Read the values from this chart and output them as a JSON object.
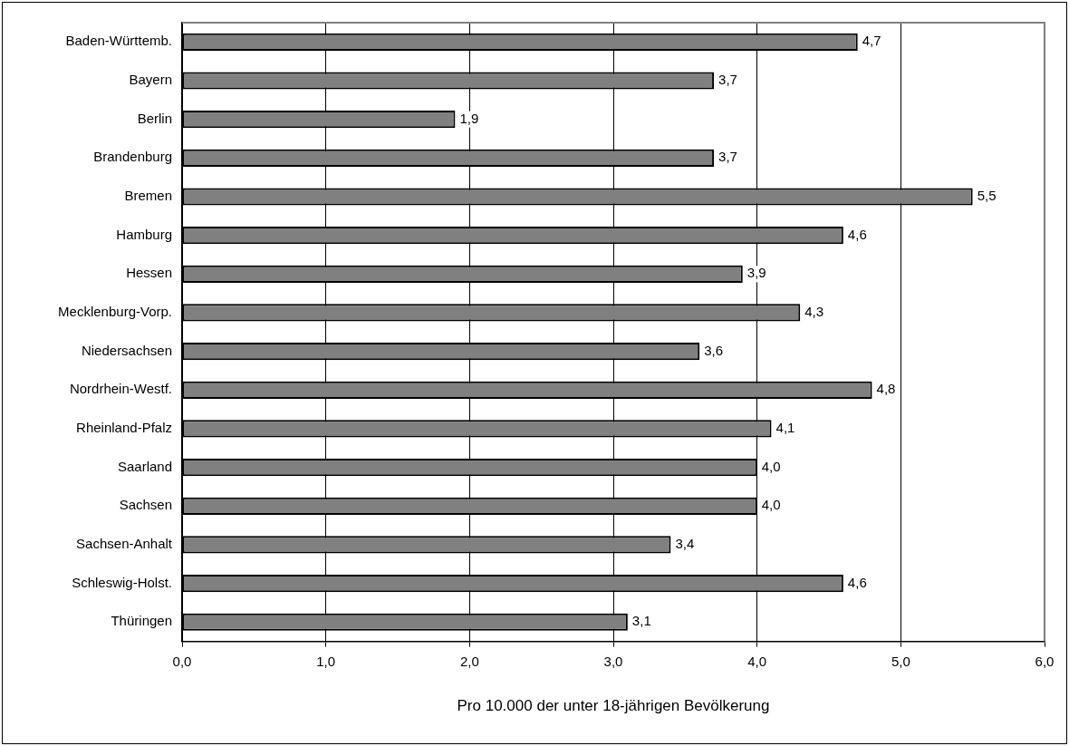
{
  "chart_data": {
    "type": "bar",
    "orientation": "horizontal",
    "xlabel": "Pro 10.000 der unter 18-jährigen Bevölkerung",
    "categories": [
      "Baden-Württemb.",
      "Bayern",
      "Berlin",
      "Brandenburg",
      "Bremen",
      "Hamburg",
      "Hessen",
      "Mecklenburg-Vorp.",
      "Niedersachsen",
      "Nordrhein-Westf.",
      "Rheinland-Pfalz",
      "Saarland",
      "Sachsen",
      "Sachsen-Anhalt",
      "Schleswig-Holst.",
      "Thüringen"
    ],
    "values": [
      4.7,
      3.7,
      1.9,
      3.7,
      5.5,
      4.6,
      3.9,
      4.3,
      3.6,
      4.8,
      4.1,
      4.0,
      4.0,
      3.4,
      4.6,
      3.1
    ],
    "value_labels": [
      "4,7",
      "3,7",
      "1,9",
      "3,7",
      "5,5",
      "4,6",
      "3,9",
      "4,3",
      "3,6",
      "4,8",
      "4,1",
      "4,0",
      "4,0",
      "3,4",
      "4,6",
      "3,1"
    ],
    "color": "#808080",
    "xlim": [
      0,
      6
    ],
    "xticks": [
      {
        "value": 0,
        "label": "0,0"
      },
      {
        "value": 1,
        "label": "1,0"
      },
      {
        "value": 2,
        "label": "2,0"
      },
      {
        "value": 3,
        "label": "3,0"
      },
      {
        "value": 4,
        "label": "4,0"
      },
      {
        "value": 5,
        "label": "5,0"
      },
      {
        "value": 6,
        "label": "6,0"
      }
    ],
    "grid": "x",
    "legend": false
  }
}
